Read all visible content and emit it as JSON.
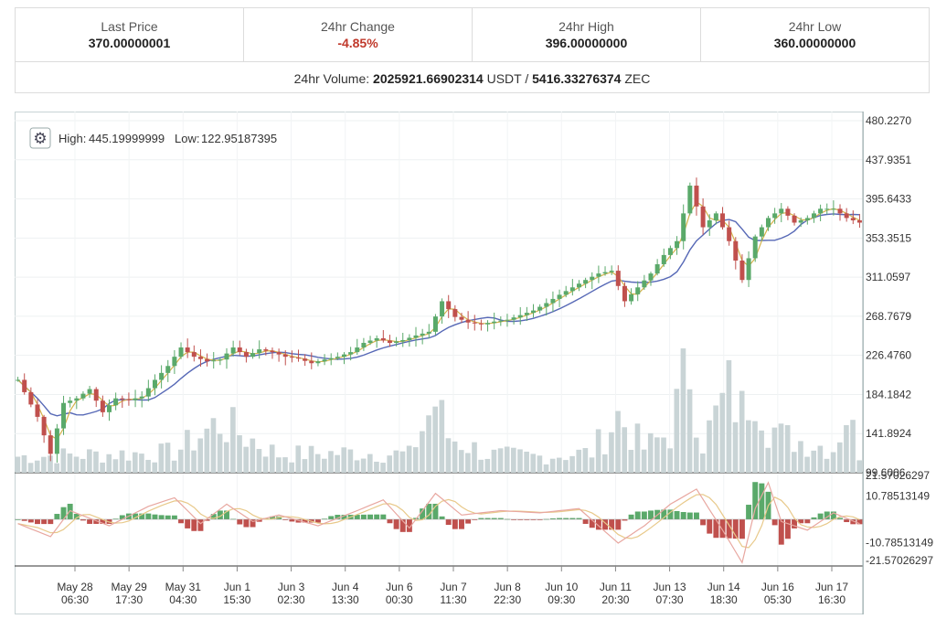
{
  "stats": {
    "last_price_label": "Last Price",
    "last_price": "370.00000001",
    "change_label": "24hr Change",
    "change": "-4.85%",
    "high_label": "24hr High",
    "high": "396.00000000",
    "low_label": "24hr Low",
    "low": "360.00000000",
    "volume_label": "24hr Volume:",
    "volume_base": "2025921.66902314",
    "volume_base_unit": "USDT",
    "volume_sep": "/",
    "volume_quote": "5416.33276374",
    "volume_quote_unit": "ZEC"
  },
  "colors": {
    "up": "#5aa96a",
    "down": "#c0504d",
    "ma_fast": "#d4b24a",
    "ma_slow": "#5668b6",
    "volume": "#c9d4d6",
    "macd_line": "#e8a7a0",
    "signal_line": "#e8c98a"
  },
  "chart_data": {
    "type": "candlestick",
    "legend": {
      "high_label": "High:",
      "high": "445.19999999",
      "low_label": "Low:",
      "low": "122.95187395",
      "placement": "top-left"
    },
    "price_axis": {
      "ticks": [
        "480.2270",
        "437.9351",
        "395.6433",
        "353.3515",
        "311.0597",
        "268.7679",
        "226.4760",
        "184.1842",
        "141.8924",
        "99.6006"
      ],
      "range": [
        99.6006,
        480.227
      ]
    },
    "macd_axis": {
      "ticks": [
        "21.57026297",
        "10.78513149",
        "-10.78513149",
        "-21.57026297"
      ],
      "range": [
        -21.57026297,
        21.57026297
      ]
    },
    "x_ticks": [
      {
        "date": "May 28",
        "time": "06:30"
      },
      {
        "date": "May 29",
        "time": "17:30"
      },
      {
        "date": "May 31",
        "time": "04:30"
      },
      {
        "date": "Jun 1",
        "time": "15:30"
      },
      {
        "date": "Jun 3",
        "time": "02:30"
      },
      {
        "date": "Jun 4",
        "time": "13:30"
      },
      {
        "date": "Jun 6",
        "time": "00:30"
      },
      {
        "date": "Jun 7",
        "time": "11:30"
      },
      {
        "date": "Jun 8",
        "time": "22:30"
      },
      {
        "date": "Jun 10",
        "time": "09:30"
      },
      {
        "date": "Jun 11",
        "time": "20:30"
      },
      {
        "date": "Jun 13",
        "time": "07:30"
      },
      {
        "date": "Jun 14",
        "time": "18:30"
      },
      {
        "date": "Jun 16",
        "time": "05:30"
      },
      {
        "date": "Jun 17",
        "time": "16:30"
      }
    ],
    "price_anchors": [
      [
        0,
        200
      ],
      [
        3,
        160
      ],
      [
        5,
        120
      ],
      [
        7,
        175
      ],
      [
        9,
        180
      ],
      [
        11,
        190
      ],
      [
        13,
        165
      ],
      [
        15,
        180
      ],
      [
        17,
        178
      ],
      [
        19,
        182
      ],
      [
        21,
        200
      ],
      [
        23,
        215
      ],
      [
        25,
        235
      ],
      [
        27,
        225
      ],
      [
        29,
        220
      ],
      [
        31,
        222
      ],
      [
        33,
        235
      ],
      [
        35,
        225
      ],
      [
        37,
        233
      ],
      [
        39,
        230
      ],
      [
        41,
        225
      ],
      [
        43,
        223
      ],
      [
        45,
        218
      ],
      [
        47,
        222
      ],
      [
        49,
        225
      ],
      [
        51,
        230
      ],
      [
        53,
        240
      ],
      [
        55,
        245
      ],
      [
        57,
        240
      ],
      [
        59,
        243
      ],
      [
        61,
        248
      ],
      [
        63,
        252
      ],
      [
        65,
        285
      ],
      [
        67,
        268
      ],
      [
        69,
        262
      ],
      [
        71,
        260
      ],
      [
        73,
        263
      ],
      [
        75,
        265
      ],
      [
        77,
        270
      ],
      [
        79,
        275
      ],
      [
        81,
        283
      ],
      [
        83,
        292
      ],
      [
        85,
        300
      ],
      [
        87,
        308
      ],
      [
        89,
        315
      ],
      [
        91,
        318
      ],
      [
        93,
        285
      ],
      [
        95,
        300
      ],
      [
        97,
        315
      ],
      [
        99,
        335
      ],
      [
        101,
        350
      ],
      [
        103,
        410
      ],
      [
        105,
        365
      ],
      [
        107,
        380
      ],
      [
        109,
        350
      ],
      [
        111,
        308
      ],
      [
        113,
        355
      ],
      [
        115,
        375
      ],
      [
        117,
        385
      ],
      [
        119,
        370
      ],
      [
        121,
        375
      ],
      [
        123,
        385
      ],
      [
        125,
        385
      ],
      [
        127,
        375
      ],
      [
        129,
        370
      ]
    ],
    "volume_anchors": [
      [
        0,
        8
      ],
      [
        12,
        9
      ],
      [
        24,
        10
      ],
      [
        31,
        25
      ],
      [
        40,
        9
      ],
      [
        52,
        10
      ],
      [
        60,
        9
      ],
      [
        64,
        35
      ],
      [
        66,
        18
      ],
      [
        72,
        9
      ],
      [
        80,
        8
      ],
      [
        88,
        10
      ],
      [
        92,
        28
      ],
      [
        96,
        12
      ],
      [
        100,
        20
      ],
      [
        103,
        55
      ],
      [
        105,
        15
      ],
      [
        109,
        40
      ],
      [
        111,
        30
      ],
      [
        113,
        50
      ],
      [
        115,
        25
      ],
      [
        117,
        18
      ],
      [
        121,
        15
      ],
      [
        125,
        12
      ],
      [
        127,
        30
      ],
      [
        129,
        10
      ]
    ],
    "macd_anchors": [
      [
        0,
        -2
      ],
      [
        5,
        -8
      ],
      [
        8,
        4
      ],
      [
        14,
        -3
      ],
      [
        20,
        6
      ],
      [
        24,
        10
      ],
      [
        28,
        -2
      ],
      [
        32,
        7
      ],
      [
        36,
        -1
      ],
      [
        40,
        2
      ],
      [
        46,
        -3
      ],
      [
        52,
        4
      ],
      [
        56,
        9
      ],
      [
        60,
        -4
      ],
      [
        64,
        12
      ],
      [
        68,
        2
      ],
      [
        74,
        4
      ],
      [
        80,
        3
      ],
      [
        86,
        5
      ],
      [
        92,
        -11
      ],
      [
        96,
        -3
      ],
      [
        100,
        7
      ],
      [
        104,
        14
      ],
      [
        108,
        -5
      ],
      [
        111,
        -20
      ],
      [
        113,
        5
      ],
      [
        115,
        17
      ],
      [
        117,
        -1
      ],
      [
        121,
        -5
      ],
      [
        125,
        3
      ],
      [
        129,
        -2
      ]
    ]
  }
}
